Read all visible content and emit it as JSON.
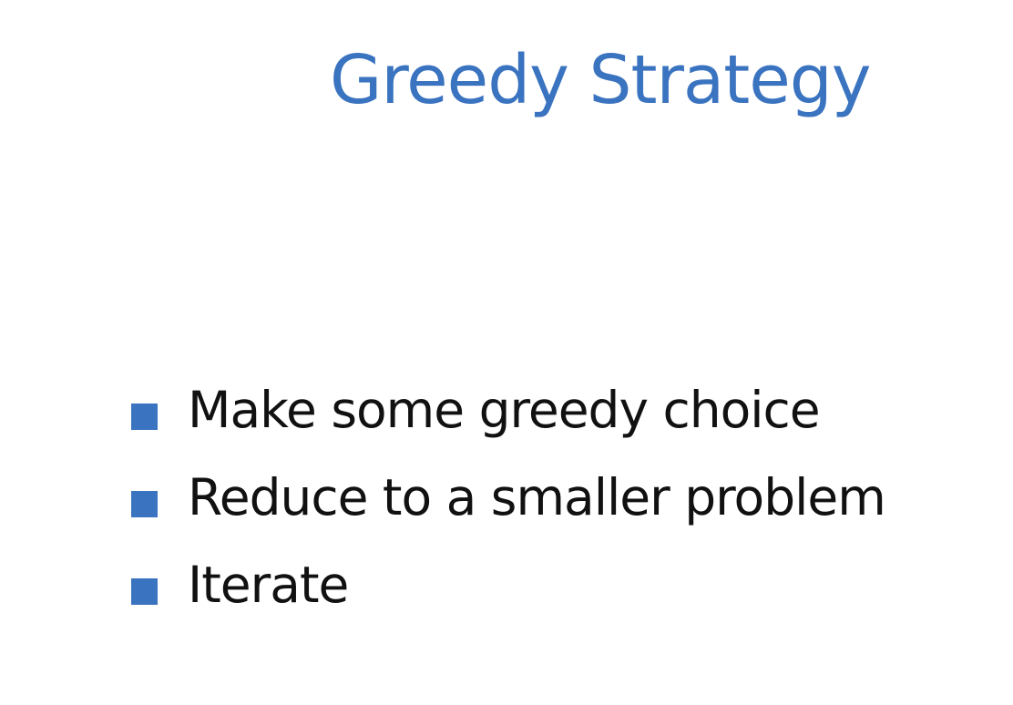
{
  "slide": {
    "title": "Greedy Strategy",
    "bullets": [
      "Make some greedy choice",
      "Reduce to a smaller problem",
      "Iterate"
    ]
  },
  "colors": {
    "title": "#3a73bf",
    "bullet_marker": "#3a73bf",
    "text": "#111111",
    "background": "#ffffff"
  }
}
